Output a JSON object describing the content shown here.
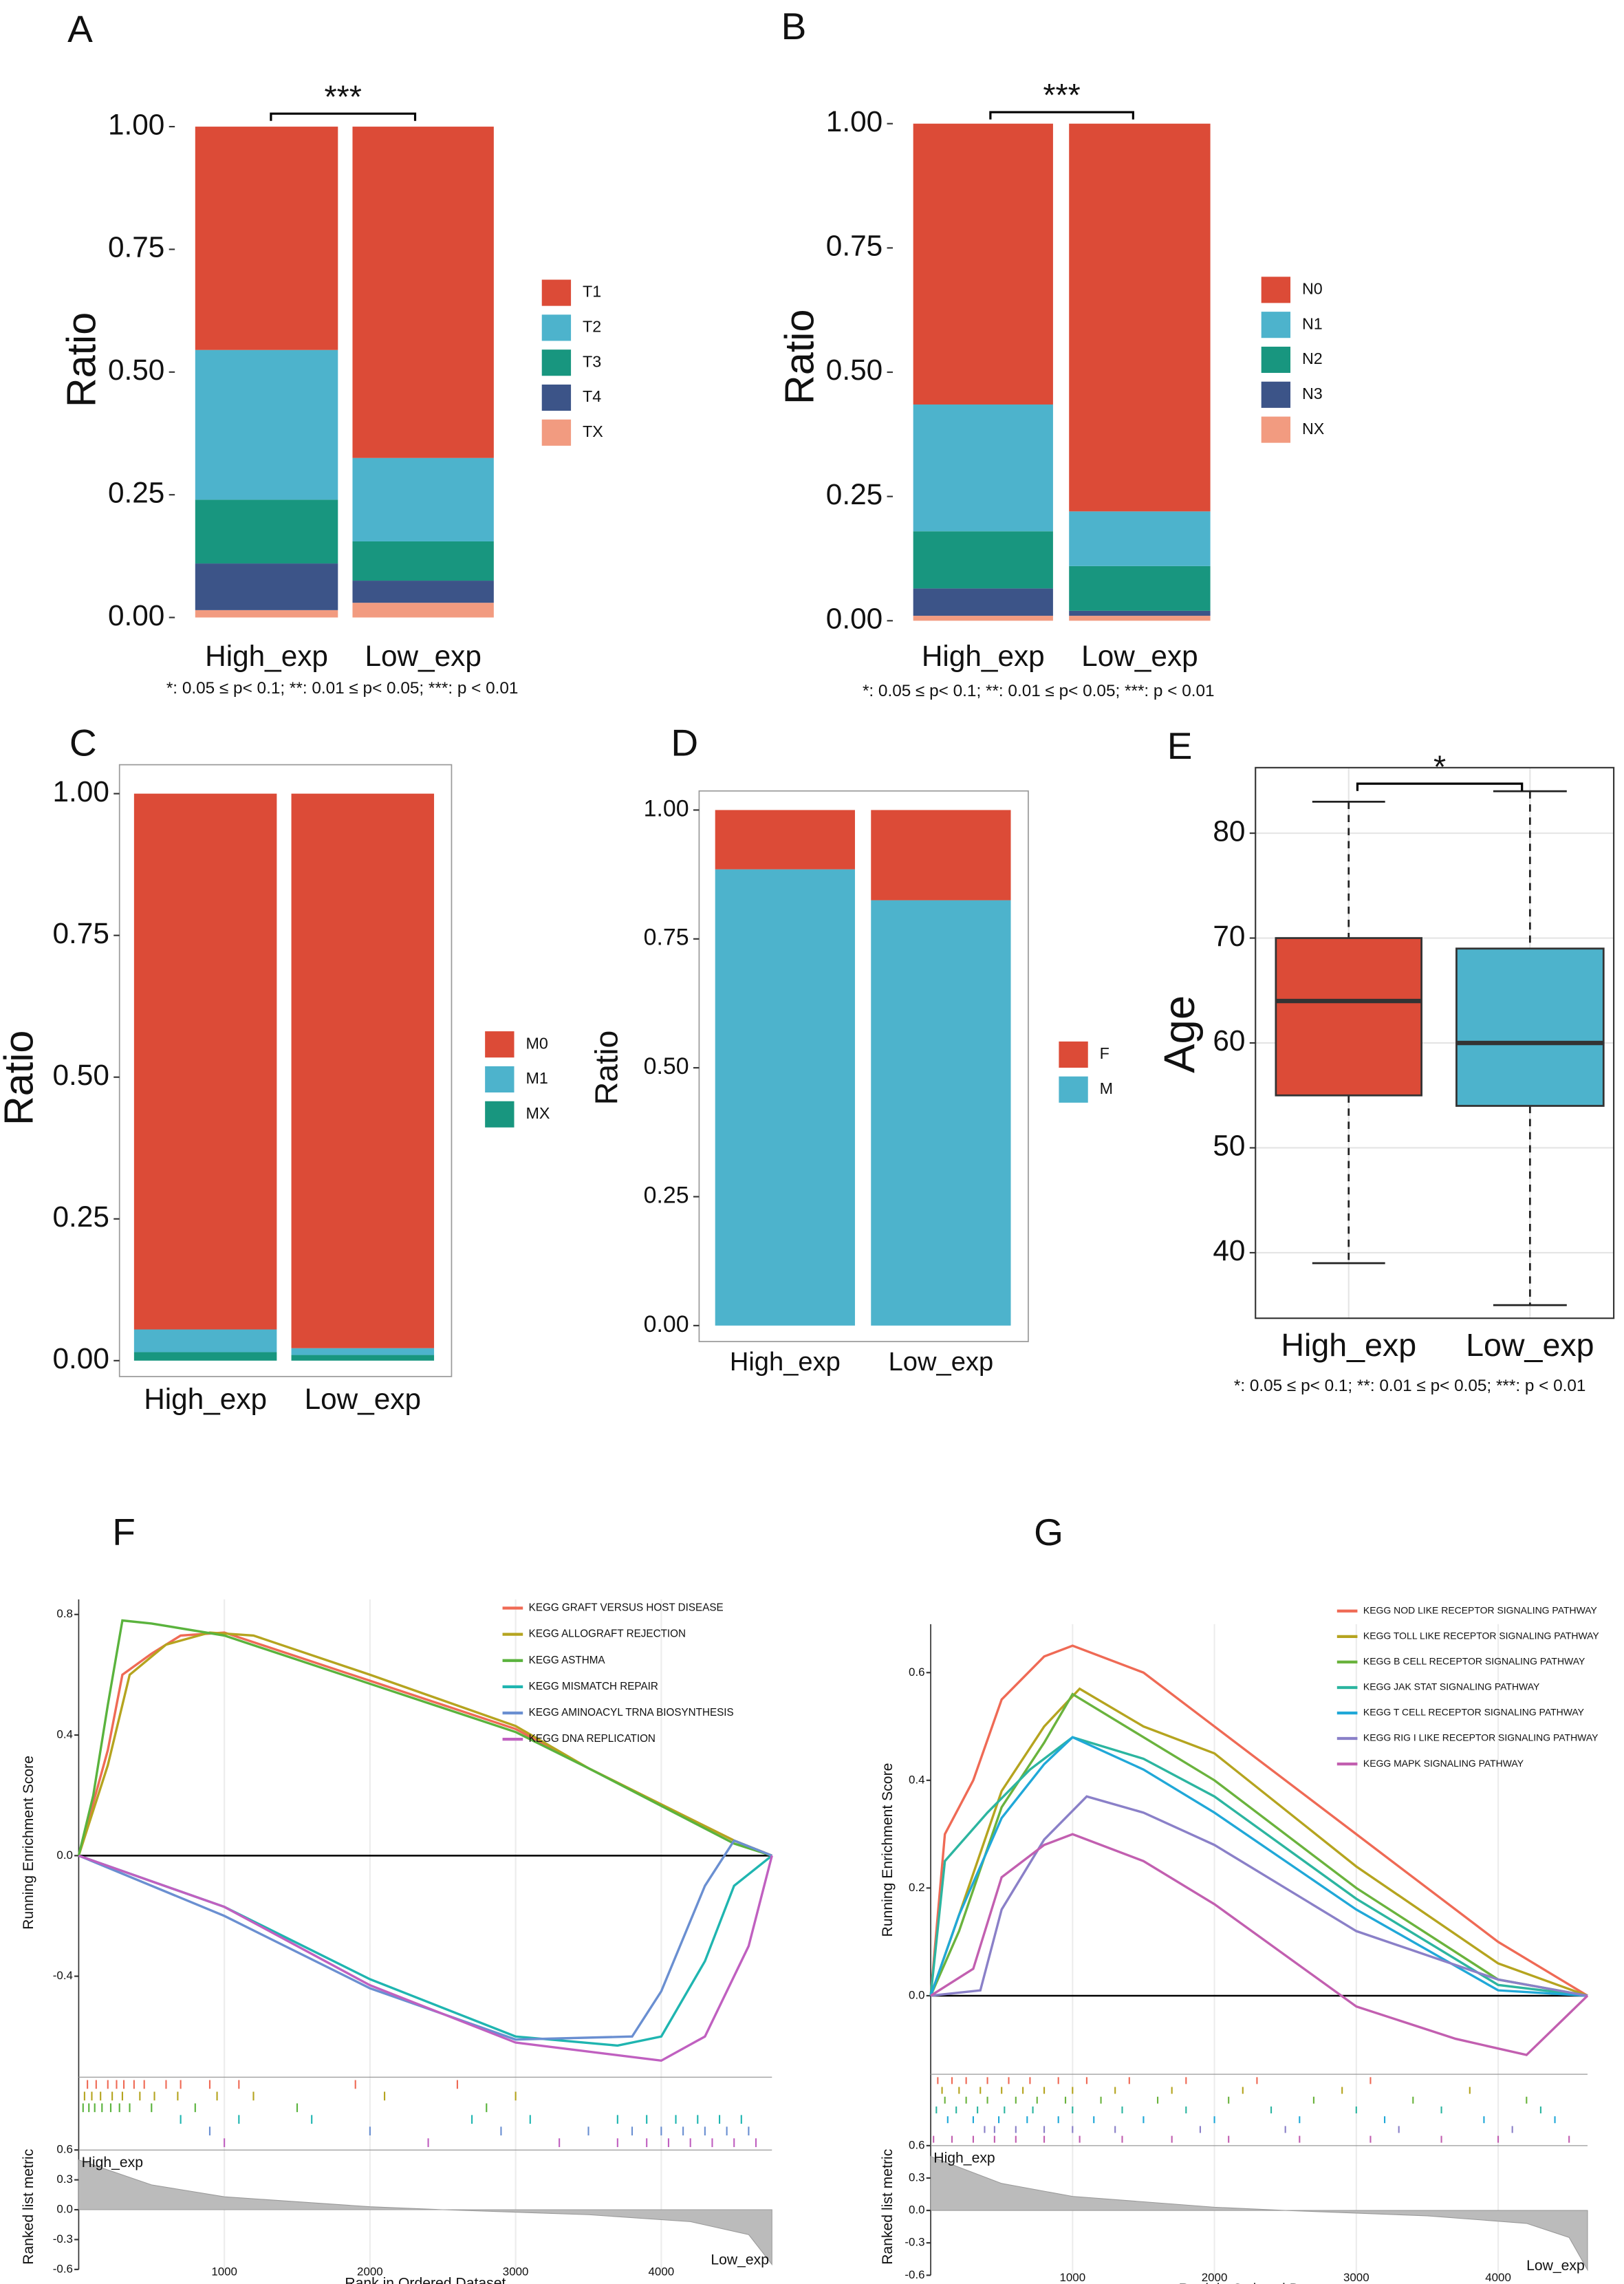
{
  "chart_data": [
    {
      "type": "stacked_bar",
      "panel": "A",
      "ylabel": "Ratio",
      "categories": [
        "High_exp",
        "Low_exp"
      ],
      "series": [
        {
          "name": "T1",
          "color": "#dc4b37",
          "values": [
            0.455,
            0.675
          ]
        },
        {
          "name": "T2",
          "color": "#4db3cc",
          "values": [
            0.305,
            0.17
          ]
        },
        {
          "name": "T3",
          "color": "#18967f",
          "values": [
            0.13,
            0.08
          ]
        },
        {
          "name": "T4",
          "color": "#3c5488",
          "values": [
            0.095,
            0.045
          ]
        },
        {
          "name": "TX",
          "color": "#f29b80",
          "values": [
            0.015,
            0.03
          ]
        }
      ],
      "ylim": [
        -0.024,
        1.074
      ],
      "yticks": [
        {
          "value": 0,
          "label": "0.00"
        },
        {
          "value": 0.25,
          "label": "0.25"
        },
        {
          "value": 0.5,
          "label": "0.50"
        },
        {
          "value": 0.75,
          "label": "0.75"
        },
        {
          "value": 1,
          "label": "1.00"
        }
      ],
      "annotation": "***",
      "footnote": "*: 0.05 ≤ p< 0.1;  **: 0.01 ≤ p< 0.05;  ***: p < 0.01"
    },
    {
      "type": "stacked_bar",
      "panel": "B",
      "ylabel": "Ratio",
      "categories": [
        "High_exp",
        "Low_exp"
      ],
      "series": [
        {
          "name": "N0",
          "color": "#dc4b37",
          "values": [
            0.565,
            0.78
          ]
        },
        {
          "name": "N1",
          "color": "#4db3cc",
          "values": [
            0.255,
            0.11
          ]
        },
        {
          "name": "N2",
          "color": "#18967f",
          "values": [
            0.115,
            0.09
          ]
        },
        {
          "name": "N3",
          "color": "#3c5488",
          "values": [
            0.055,
            0.01
          ]
        },
        {
          "name": "NX",
          "color": "#f29b80",
          "values": [
            0.01,
            0.01
          ]
        }
      ],
      "ylim": [
        -0.023,
        1.07
      ],
      "yticks": [
        {
          "value": 0,
          "label": "0.00"
        },
        {
          "value": 0.25,
          "label": "0.25"
        },
        {
          "value": 0.5,
          "label": "0.50"
        },
        {
          "value": 0.75,
          "label": "0.75"
        },
        {
          "value": 1,
          "label": "1.00"
        }
      ],
      "annotation": "***",
      "footnote": "*: 0.05 ≤ p< 0.1;  **: 0.01 ≤ p< 0.05;  ***: p < 0.01"
    },
    {
      "type": "stacked_bar",
      "panel": "C",
      "ylabel": "Ratio",
      "categories": [
        "High_exp",
        "Low_exp"
      ],
      "series": [
        {
          "name": "M0",
          "color": "#dc4b37",
          "values": [
            0.945,
            0.978
          ]
        },
        {
          "name": "M1",
          "color": "#4db3cc",
          "values": [
            0.04,
            0.012
          ]
        },
        {
          "name": "MX",
          "color": "#18967f",
          "values": [
            0.015,
            0.01
          ]
        }
      ],
      "ylim": [
        -0.028,
        1.051
      ],
      "yticks": [
        {
          "value": 0,
          "label": "0.00"
        },
        {
          "value": 0.25,
          "label": "0.25"
        },
        {
          "value": 0.5,
          "label": "0.50"
        },
        {
          "value": 0.75,
          "label": "0.75"
        },
        {
          "value": 1,
          "label": "1.00"
        }
      ]
    },
    {
      "type": "stacked_bar",
      "panel": "D",
      "ylabel": "Ratio",
      "categories": [
        "High_exp",
        "Low_exp"
      ],
      "series": [
        {
          "name": "F",
          "color": "#dc4b37",
          "values": [
            0.115,
            0.175
          ]
        },
        {
          "name": "M",
          "color": "#4db3cc",
          "values": [
            0.885,
            0.825
          ]
        }
      ],
      "ylim": [
        -0.031,
        1.037
      ],
      "yticks": [
        {
          "value": 0,
          "label": "0.00"
        },
        {
          "value": 0.25,
          "label": "0.25"
        },
        {
          "value": 0.5,
          "label": "0.50"
        },
        {
          "value": 0.75,
          "label": "0.75"
        },
        {
          "value": 1,
          "label": "1.00"
        }
      ]
    },
    {
      "type": "box",
      "panel": "E",
      "ylabel": "Age",
      "categories": [
        "High_exp",
        "Low_exp"
      ],
      "colors": [
        "#dc4b37",
        "#4db3cc"
      ],
      "boxes": [
        {
          "min": 39,
          "q1": 55,
          "median": 64,
          "q3": 70,
          "max": 83
        },
        {
          "min": 35,
          "q1": 54,
          "median": 60,
          "q3": 69,
          "max": 84
        }
      ],
      "ylim": [
        33.75,
        86.25
      ],
      "yticks": [
        40,
        50,
        60,
        70,
        80
      ],
      "grid": true,
      "annotation": "*",
      "footnote": "*: 0.05 ≤ p< 0.1;  **: 0.01 ≤ p< 0.05;  ***: p < 0.01"
    },
    {
      "type": "gsea",
      "panel": "F",
      "ylabel": "Running Enrichment Score",
      "xlabel": "Rank in Ordered Dataset",
      "metric_label": "Ranked list metric",
      "xlim": [
        0,
        4760
      ],
      "xticks": [
        1000,
        2000,
        3000,
        4000
      ],
      "ylim": [
        -0.73,
        0.85
      ],
      "yticks": [
        0.8,
        0.4,
        {
          "value": 0,
          "label": "0.0"
        },
        -0.4
      ],
      "series": [
        {
          "name": "KEGG GRAFT VERSUS HOST DISEASE",
          "color": "#ef6a55",
          "x": [
            0,
            200,
            300,
            500,
            700,
            1000,
            2000,
            3000,
            3500,
            4500,
            4760
          ],
          "values": [
            0,
            0.35,
            0.6,
            0.67,
            0.73,
            0.74,
            0.58,
            0.42,
            0.29,
            0.05,
            0
          ],
          "hits": [
            60,
            120,
            200,
            260,
            310,
            380,
            450,
            600,
            700,
            900,
            1100,
            1900,
            2600
          ]
        },
        {
          "name": "KEGG ALLOGRAFT REJECTION",
          "color": "#b5a41f",
          "x": [
            0,
            200,
            350,
            600,
            900,
            1200,
            2000,
            3000,
            3500,
            4500,
            4760
          ],
          "values": [
            0,
            0.3,
            0.6,
            0.7,
            0.74,
            0.73,
            0.6,
            0.43,
            0.29,
            0.05,
            0
          ],
          "hits": [
            40,
            90,
            150,
            230,
            300,
            420,
            520,
            680,
            950,
            1200,
            2100,
            3000
          ]
        },
        {
          "name": "KEGG ASTHMA",
          "color": "#5ab33d",
          "x": [
            0,
            100,
            200,
            300,
            500,
            1000,
            2000,
            3000,
            3500,
            4500,
            4760
          ],
          "values": [
            0,
            0.2,
            0.5,
            0.78,
            0.77,
            0.73,
            0.57,
            0.41,
            0.29,
            0.04,
            0
          ],
          "hits": [
            30,
            70,
            110,
            160,
            220,
            280,
            350,
            500,
            800,
            1500,
            2800
          ]
        },
        {
          "name": "KEGG MISMATCH REPAIR",
          "color": "#1fb5b0",
          "x": [
            0,
            1000,
            2000,
            3000,
            3700,
            4000,
            4300,
            4500,
            4760
          ],
          "values": [
            0,
            -0.17,
            -0.41,
            -0.6,
            -0.63,
            -0.6,
            -0.35,
            -0.1,
            0
          ],
          "hits": [
            700,
            1100,
            1600,
            2700,
            3100,
            3700,
            3900,
            4100,
            4250,
            4400,
            4550
          ]
        },
        {
          "name": "KEGG AMINOACYL TRNA BIOSYNTHESIS",
          "color": "#6a8fd1",
          "x": [
            0,
            1000,
            2000,
            3000,
            3800,
            4000,
            4300,
            4500,
            4760
          ],
          "values": [
            0,
            -0.2,
            -0.44,
            -0.61,
            -0.6,
            -0.45,
            -0.1,
            0.05,
            0
          ],
          "hits": [
            900,
            2000,
            2900,
            3500,
            3800,
            4000,
            4150,
            4300,
            4450,
            4600
          ]
        },
        {
          "name": "KEGG DNA REPLICATION",
          "color": "#c060c0",
          "x": [
            0,
            1000,
            2000,
            3000,
            4000,
            4300,
            4600,
            4760
          ],
          "values": [
            0,
            -0.17,
            -0.43,
            -0.62,
            -0.68,
            -0.6,
            -0.3,
            0
          ],
          "hits": [
            1000,
            2400,
            3300,
            3700,
            3900,
            4050,
            4200,
            4350,
            4500,
            4650
          ]
        }
      ],
      "metric": {
        "x": [
          0,
          500,
          1000,
          2000,
          2500,
          3500,
          4200,
          4600,
          4760
        ],
        "values": [
          0.5,
          0.25,
          0.13,
          0.03,
          0,
          -0.05,
          -0.12,
          -0.25,
          -0.55
        ],
        "color": "#bbbbbb",
        "ylim": [
          -0.6,
          0.6
        ],
        "yticks": [
          0.6,
          0.3,
          {
            "value": 0,
            "label": "0.0"
          },
          -0.3,
          -0.6
        ],
        "high_label": "High_exp",
        "low_label": "Low_exp"
      }
    },
    {
      "type": "gsea",
      "panel": "G",
      "ylabel": "Running Enrichment Score",
      "xlabel": "Rank in Ordered Dataset",
      "metric_label": "Ranked list metric",
      "xlim": [
        0,
        4630
      ],
      "xticks": [
        1000,
        2000,
        3000,
        4000
      ],
      "ylim": [
        -0.135,
        0.69
      ],
      "yticks": [
        0.6,
        0.4,
        0.2,
        {
          "value": 0,
          "label": "0.0"
        }
      ],
      "series": [
        {
          "name": "KEGG NOD LIKE RECEPTOR SIGNALING PATHWAY",
          "color": "#ef6a55",
          "x": [
            0,
            100,
            300,
            500,
            800,
            1000,
            1500,
            2000,
            3000,
            4000,
            4630
          ],
          "values": [
            0,
            0.3,
            0.4,
            0.55,
            0.63,
            0.65,
            0.6,
            0.5,
            0.3,
            0.1,
            0
          ],
          "hits": [
            50,
            150,
            250,
            400,
            550,
            700,
            900,
            1100,
            1400,
            1800,
            2300,
            3100
          ]
        },
        {
          "name": "KEGG TOLL LIKE RECEPTOR SIGNALING PATHWAY",
          "color": "#b5a41f",
          "x": [
            0,
            200,
            500,
            800,
            1050,
            1500,
            2000,
            3000,
            4000,
            4630
          ],
          "values": [
            0,
            0.15,
            0.38,
            0.5,
            0.57,
            0.5,
            0.45,
            0.24,
            0.06,
            0
          ],
          "hits": [
            80,
            200,
            350,
            500,
            650,
            800,
            1000,
            1300,
            1700,
            2200,
            2900,
            3800
          ]
        },
        {
          "name": "KEGG B CELL RECEPTOR SIGNALING PATHWAY",
          "color": "#6ab33d",
          "x": [
            0,
            200,
            500,
            800,
            1000,
            1500,
            2000,
            3000,
            4000,
            4630
          ],
          "values": [
            0,
            0.12,
            0.35,
            0.47,
            0.56,
            0.48,
            0.4,
            0.2,
            0.03,
            0
          ],
          "hits": [
            100,
            250,
            400,
            600,
            750,
            950,
            1200,
            1600,
            2100,
            2700,
            3400,
            4200
          ]
        },
        {
          "name": "KEGG JAK STAT SIGNALING PATHWAY",
          "color": "#2cb5a0",
          "x": [
            0,
            100,
            400,
            700,
            1000,
            1500,
            2000,
            3000,
            4000,
            4630
          ],
          "values": [
            0,
            0.25,
            0.34,
            0.42,
            0.48,
            0.44,
            0.37,
            0.18,
            0.02,
            0
          ],
          "hits": [
            40,
            180,
            330,
            520,
            720,
            1000,
            1350,
            1800,
            2400,
            3000,
            3600,
            4300
          ]
        },
        {
          "name": "KEGG T CELL RECEPTOR SIGNALING PATHWAY",
          "color": "#20a8d8",
          "x": [
            0,
            200,
            500,
            800,
            1000,
            1500,
            2000,
            3000,
            4000,
            4630
          ],
          "values": [
            0,
            0.15,
            0.33,
            0.43,
            0.48,
            0.42,
            0.34,
            0.16,
            0.01,
            0
          ],
          "hits": [
            120,
            300,
            480,
            680,
            900,
            1150,
            1500,
            2000,
            2600,
            3200,
            3900,
            4400
          ]
        },
        {
          "name": "KEGG RIG I LIKE RECEPTOR SIGNALING PATHWAY",
          "color": "#8a80c8",
          "x": [
            0,
            350,
            500,
            800,
            1100,
            1500,
            2000,
            3000,
            4000,
            4630
          ],
          "values": [
            0,
            0.01,
            0.16,
            0.29,
            0.37,
            0.34,
            0.28,
            0.12,
            0.03,
            0
          ],
          "hits": [
            380,
            450,
            600,
            800,
            1000,
            1300,
            1900,
            2500,
            3300,
            4100
          ]
        },
        {
          "name": "KEGG MAPK SIGNALING PATHWAY",
          "color": "#c25fb0",
          "x": [
            0,
            300,
            500,
            800,
            1000,
            1500,
            2000,
            3000,
            3700,
            4200,
            4630
          ],
          "values": [
            0,
            0.05,
            0.22,
            0.28,
            0.3,
            0.25,
            0.17,
            -0.02,
            -0.08,
            -0.11,
            0
          ],
          "hits": [
            20,
            150,
            300,
            450,
            600,
            800,
            1050,
            1350,
            1700,
            2100,
            2600,
            3100,
            3600,
            4000,
            4500
          ]
        }
      ],
      "metric": {
        "x": [
          0,
          500,
          1000,
          2000,
          2500,
          3500,
          4200,
          4500,
          4630
        ],
        "values": [
          0.5,
          0.25,
          0.13,
          0.03,
          0,
          -0.05,
          -0.12,
          -0.25,
          -0.55
        ],
        "color": "#bbbbbb",
        "ylim": [
          -0.6,
          0.6
        ],
        "yticks": [
          0.6,
          0.3,
          {
            "value": 0,
            "label": "0.0"
          },
          -0.3,
          -0.6
        ],
        "high_label": "High_exp",
        "low_label": "Low_exp"
      }
    }
  ]
}
